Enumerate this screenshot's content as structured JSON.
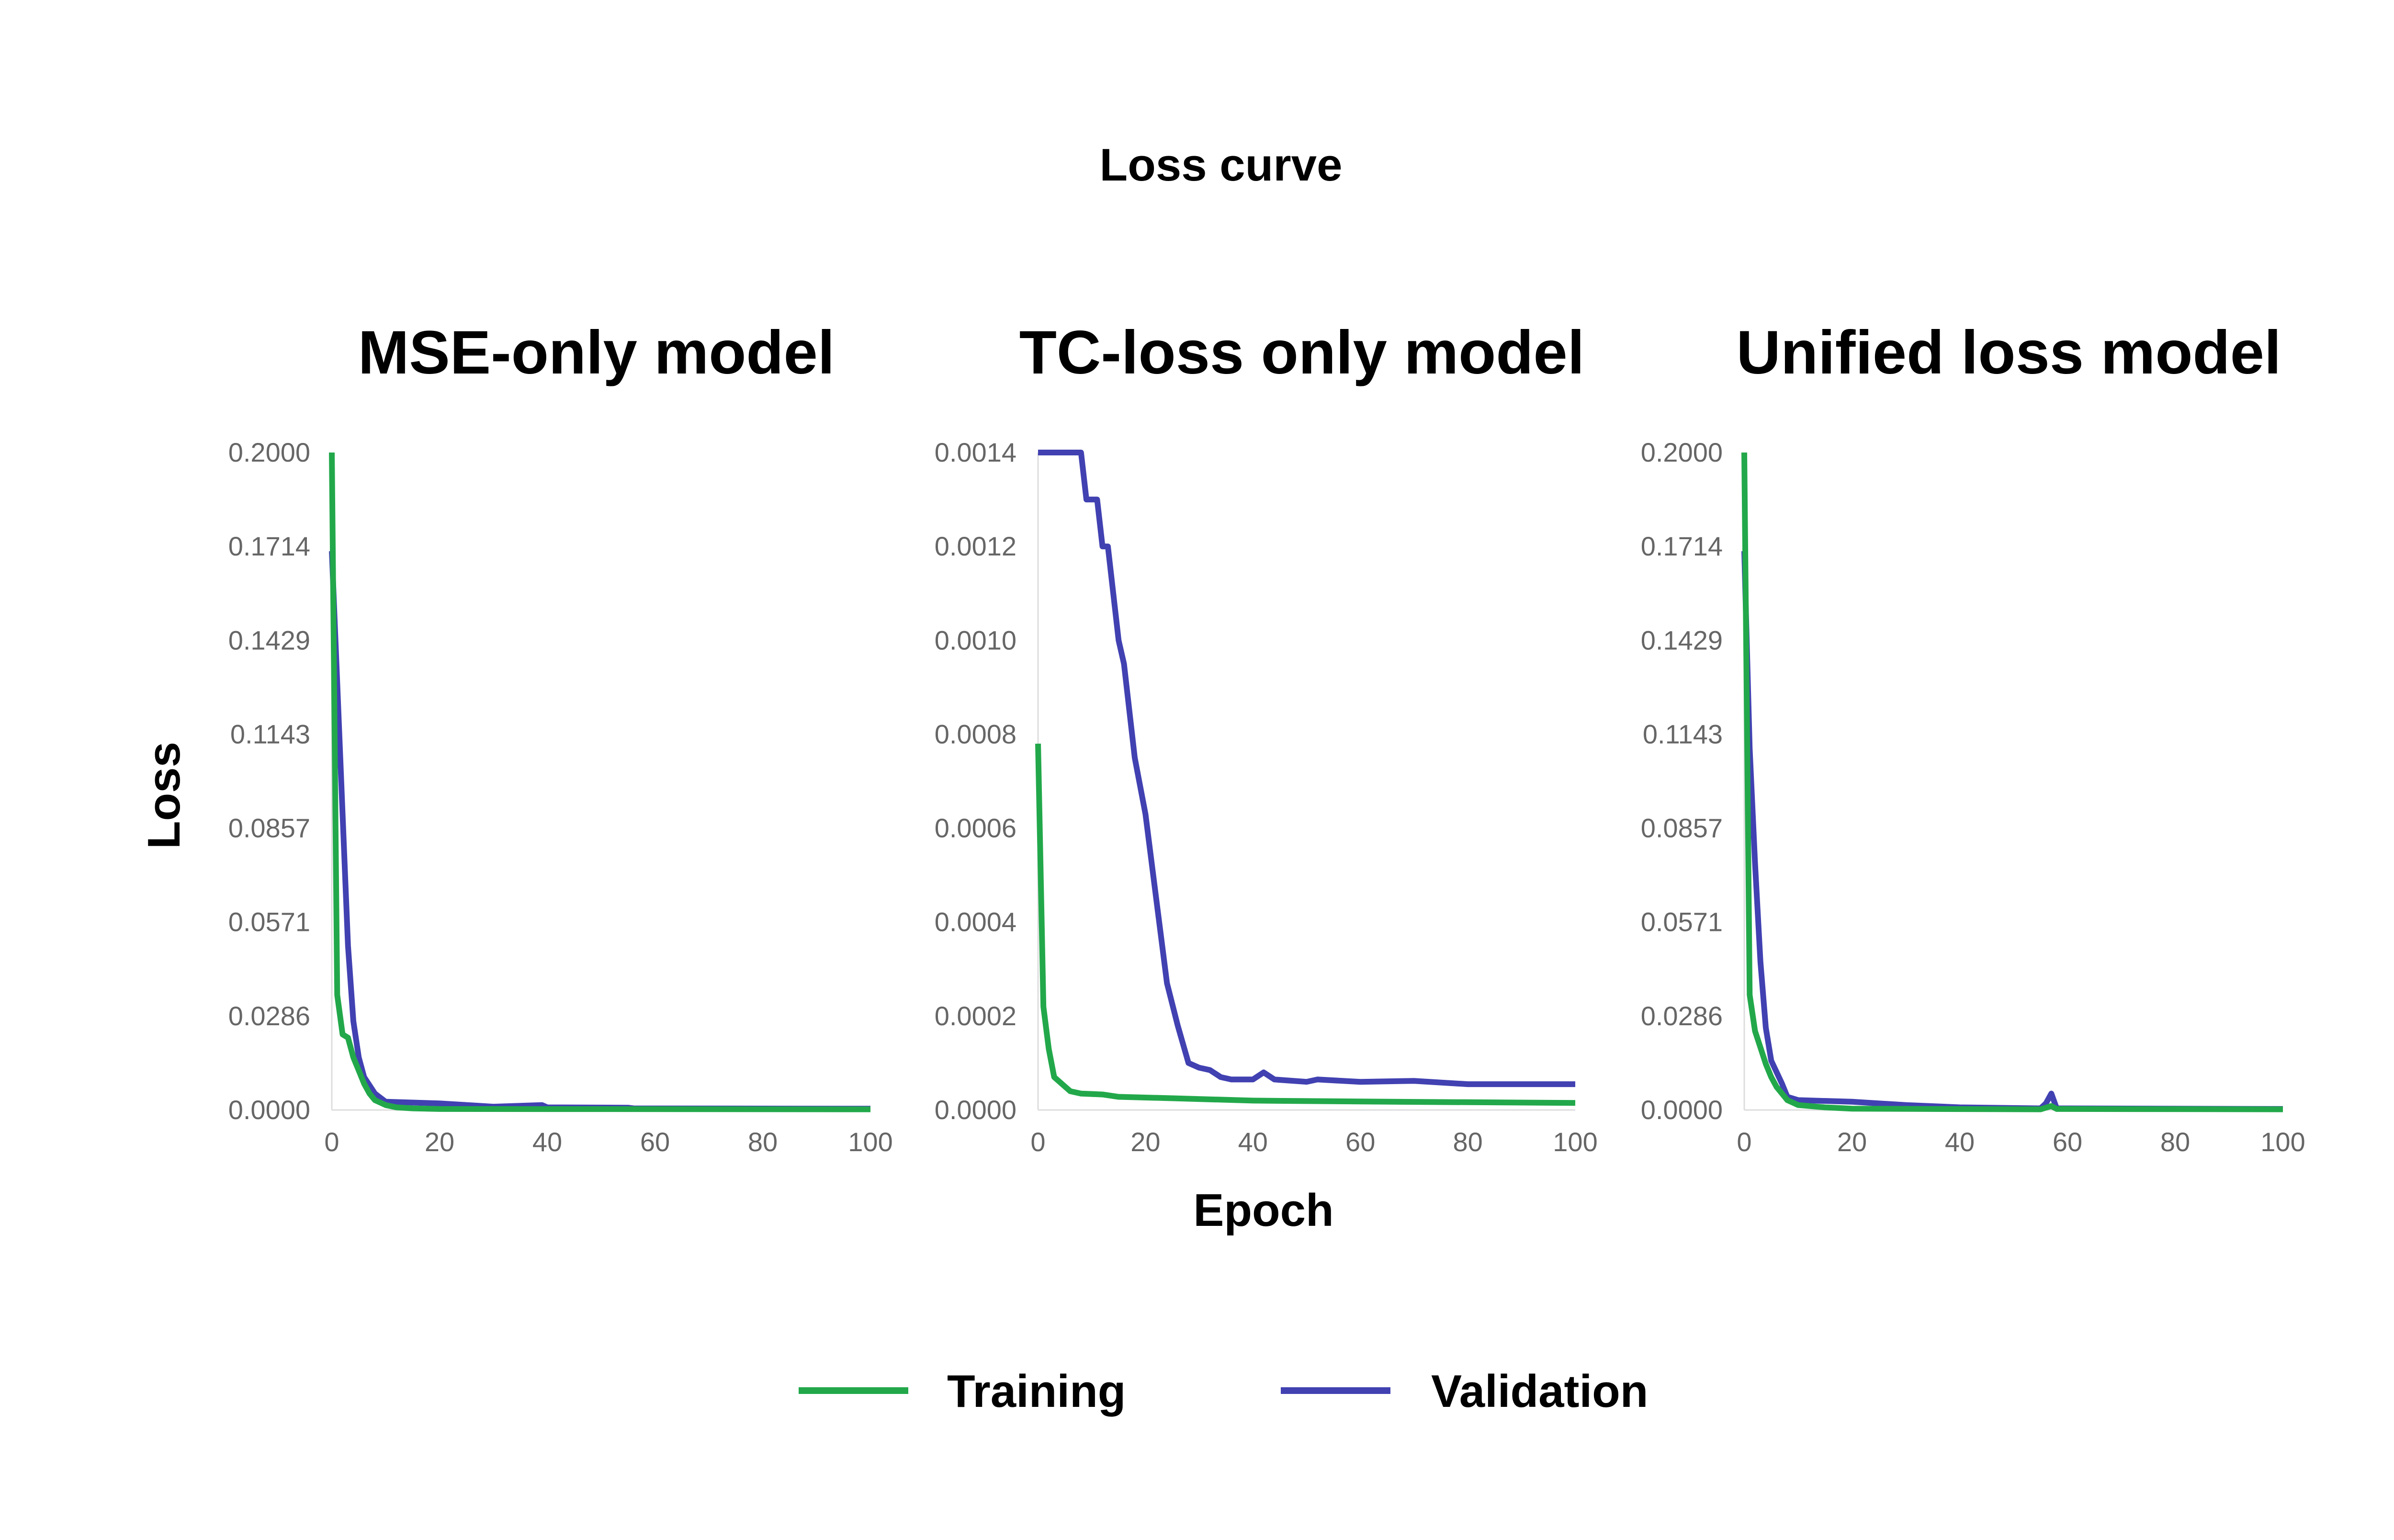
{
  "chart_data": {
    "title": "Loss curve",
    "xlabel": "Epoch",
    "ylabel": "Loss",
    "legend": {
      "placement": "bottom",
      "entries": [
        {
          "name": "Training",
          "color": "#22a84a"
        },
        {
          "name": "Validation",
          "color": "#4141b2"
        }
      ]
    },
    "panels": [
      {
        "type": "line",
        "title": "MSE-only model",
        "xlim": [
          0,
          100
        ],
        "ylim": [
          0,
          0.2
        ],
        "xticks": [
          "0",
          "20",
          "40",
          "60",
          "80",
          "100"
        ],
        "yticks": [
          "0.0000",
          "0.0286",
          "0.0571",
          "0.0857",
          "0.1143",
          "0.1429",
          "0.1714",
          "0.2000"
        ],
        "series": [
          {
            "name": "Validation",
            "points": [
              [
                0,
                0.17
              ],
              [
                1,
                0.13
              ],
              [
                2,
                0.09
              ],
              [
                3,
                0.05
              ],
              [
                4,
                0.027
              ],
              [
                5,
                0.016
              ],
              [
                6,
                0.01
              ],
              [
                8,
                0.005
              ],
              [
                10,
                0.0025
              ],
              [
                20,
                0.002
              ],
              [
                30,
                0.001
              ],
              [
                39,
                0.0015
              ],
              [
                40,
                0.0008
              ],
              [
                55,
                0.0007
              ],
              [
                56,
                0.0005
              ],
              [
                100,
                0.0004
              ]
            ]
          },
          {
            "name": "Training",
            "points": [
              [
                0,
                0.2
              ],
              [
                1,
                0.035
              ],
              [
                2,
                0.023
              ],
              [
                3,
                0.022
              ],
              [
                4,
                0.016
              ],
              [
                5,
                0.012
              ],
              [
                6,
                0.008
              ],
              [
                7,
                0.005
              ],
              [
                8,
                0.003
              ],
              [
                10,
                0.0015
              ],
              [
                12,
                0.0008
              ],
              [
                15,
                0.0005
              ],
              [
                20,
                0.0003
              ],
              [
                100,
                0.0002
              ]
            ]
          }
        ]
      },
      {
        "type": "line",
        "title": "TC-loss only model",
        "xlim": [
          0,
          100
        ],
        "ylim": [
          0,
          0.0014
        ],
        "xticks": [
          "0",
          "20",
          "40",
          "60",
          "80",
          "100"
        ],
        "yticks": [
          "0.0000",
          "0.0002",
          "0.0004",
          "0.0006",
          "0.0008",
          "0.0010",
          "0.0012",
          "0.0014"
        ],
        "series": [
          {
            "name": "Validation",
            "points": [
              [
                0,
                0.0014
              ],
              [
                8,
                0.0014
              ],
              [
                9,
                0.0013
              ],
              [
                11,
                0.0013
              ],
              [
                12,
                0.0012
              ],
              [
                13,
                0.0012
              ],
              [
                15,
                0.001
              ],
              [
                16,
                0.00095
              ],
              [
                18,
                0.00075
              ],
              [
                20,
                0.00063
              ],
              [
                22,
                0.00045
              ],
              [
                24,
                0.00027
              ],
              [
                26,
                0.00018
              ],
              [
                28,
                0.0001
              ],
              [
                30,
                9e-05
              ],
              [
                32,
                8.5e-05
              ],
              [
                34,
                7e-05
              ],
              [
                36,
                6.5e-05
              ],
              [
                40,
                6.5e-05
              ],
              [
                42,
                8e-05
              ],
              [
                44,
                6.5e-05
              ],
              [
                50,
                6e-05
              ],
              [
                52,
                6.5e-05
              ],
              [
                60,
                6e-05
              ],
              [
                70,
                6.2e-05
              ],
              [
                80,
                5.5e-05
              ],
              [
                100,
                5.5e-05
              ]
            ]
          },
          {
            "name": "Training",
            "points": [
              [
                0,
                0.00078
              ],
              [
                1,
                0.00022
              ],
              [
                2,
                0.00013
              ],
              [
                3,
                7e-05
              ],
              [
                5,
                5e-05
              ],
              [
                6,
                4e-05
              ],
              [
                8,
                3.5e-05
              ],
              [
                12,
                3.3e-05
              ],
              [
                15,
                2.8e-05
              ],
              [
                25,
                2.5e-05
              ],
              [
                40,
                2e-05
              ],
              [
                60,
                1.8e-05
              ],
              [
                100,
                1.5e-05
              ]
            ]
          }
        ]
      },
      {
        "type": "line",
        "title": "Unified loss model",
        "xlim": [
          0,
          100
        ],
        "ylim": [
          0,
          0.2
        ],
        "xticks": [
          "0",
          "20",
          "40",
          "60",
          "80",
          "100"
        ],
        "yticks": [
          "0.0000",
          "0.0286",
          "0.0571",
          "0.0857",
          "0.1143",
          "0.1429",
          "0.1714",
          "0.2000"
        ],
        "series": [
          {
            "name": "Validation",
            "points": [
              [
                0,
                0.17
              ],
              [
                1,
                0.11
              ],
              [
                2,
                0.075
              ],
              [
                3,
                0.045
              ],
              [
                4,
                0.025
              ],
              [
                5,
                0.015
              ],
              [
                7,
                0.008
              ],
              [
                8,
                0.004
              ],
              [
                10,
                0.003
              ],
              [
                20,
                0.0025
              ],
              [
                30,
                0.0015
              ],
              [
                40,
                0.0008
              ],
              [
                55,
                0.0005
              ],
              [
                56,
                0.002
              ],
              [
                57,
                0.005
              ],
              [
                58,
                0.0005
              ],
              [
                100,
                0.0003
              ]
            ]
          },
          {
            "name": "Training",
            "points": [
              [
                0,
                0.2
              ],
              [
                1,
                0.035
              ],
              [
                2,
                0.024
              ],
              [
                3,
                0.019
              ],
              [
                4,
                0.014
              ],
              [
                5,
                0.01
              ],
              [
                6,
                0.007
              ],
              [
                8,
                0.003
              ],
              [
                10,
                0.0015
              ],
              [
                15,
                0.0008
              ],
              [
                20,
                0.0004
              ],
              [
                55,
                0.0002
              ],
              [
                57,
                0.0012
              ],
              [
                58,
                0.0003
              ],
              [
                100,
                0.0002
              ]
            ]
          }
        ]
      }
    ]
  }
}
